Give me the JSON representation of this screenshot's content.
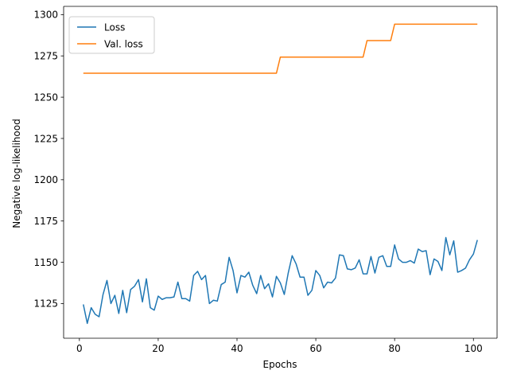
{
  "chart_data": {
    "type": "line",
    "title": "",
    "xlabel": "Epochs",
    "ylabel": "Negative log-likelihood",
    "xlim": [
      -4,
      106
    ],
    "ylim": [
      1104,
      1305
    ],
    "xticks": [
      0,
      20,
      40,
      60,
      80,
      100
    ],
    "yticks": [
      1125,
      1150,
      1175,
      1200,
      1225,
      1250,
      1275,
      1300
    ],
    "grid": false,
    "legend_position": "upper-left",
    "series": [
      {
        "name": "Loss",
        "color": "#1f77b4",
        "x": [
          1,
          2,
          3,
          4,
          5,
          6,
          7,
          8,
          9,
          10,
          11,
          12,
          13,
          14,
          15,
          16,
          17,
          18,
          19,
          20,
          21,
          22,
          23,
          24,
          25,
          26,
          27,
          28,
          29,
          30,
          31,
          32,
          33,
          34,
          35,
          36,
          37,
          38,
          39,
          40,
          41,
          42,
          43,
          44,
          45,
          46,
          47,
          48,
          49,
          50,
          51,
          52,
          53,
          54,
          55,
          56,
          57,
          58,
          59,
          60,
          61,
          62,
          63,
          64,
          65,
          66,
          67,
          68,
          69,
          70,
          71,
          72,
          73,
          74,
          75,
          76,
          77,
          78,
          79,
          80,
          81,
          82,
          83,
          84,
          85,
          86,
          87,
          88,
          89,
          90,
          91,
          92,
          93,
          94,
          95,
          96,
          97,
          98,
          99,
          100,
          101
        ],
        "values": [
          1124.5,
          1113.0,
          1122.5,
          1118.5,
          1117.0,
          1130.5,
          1139.0,
          1125.0,
          1130.0,
          1119.0,
          1133.0,
          1119.5,
          1133.5,
          1135.5,
          1139.5,
          1126.0,
          1140.0,
          1122.5,
          1121.0,
          1129.5,
          1127.5,
          1128.5,
          1128.5,
          1129.0,
          1138.0,
          1128.0,
          1128.0,
          1126.5,
          1142.0,
          1144.5,
          1139.5,
          1142.0,
          1125.0,
          1127.0,
          1126.5,
          1136.5,
          1138.0,
          1153.0,
          1145.0,
          1131.5,
          1142.0,
          1141.0,
          1144.0,
          1136.0,
          1131.0,
          1142.0,
          1134.0,
          1137.0,
          1129.0,
          1141.5,
          1137.5,
          1130.5,
          1143.5,
          1154.0,
          1149.0,
          1141.0,
          1141.0,
          1130.0,
          1133.0,
          1145.0,
          1142.0,
          1134.5,
          1138.0,
          1137.5,
          1140.5,
          1154.5,
          1154.0,
          1146.0,
          1145.5,
          1146.5,
          1151.5,
          1143.0,
          1143.0,
          1153.5,
          1143.5,
          1153.0,
          1154.0,
          1147.5,
          1147.5,
          1160.5,
          1152.0,
          1150.0,
          1150.0,
          1151.0,
          1149.5,
          1158.0,
          1156.5,
          1157.0,
          1142.5,
          1152.0,
          1150.5,
          1145.0,
          1165.0,
          1154.5,
          1163.0,
          1144.0,
          1145.0,
          1146.5,
          1151.5,
          1155.0,
          1163.5
        ]
      },
      {
        "name": "Val. loss",
        "color": "#ff7f0e",
        "x": [
          1,
          10,
          20,
          30,
          40,
          50,
          51,
          60,
          70,
          72,
          73,
          79,
          80,
          90,
          101
        ],
        "values": [
          1264.5,
          1264.5,
          1264.5,
          1264.5,
          1264.5,
          1264.5,
          1274.3,
          1274.3,
          1274.3,
          1274.3,
          1284.3,
          1284.3,
          1294.2,
          1294.2,
          1294.2
        ]
      }
    ]
  }
}
